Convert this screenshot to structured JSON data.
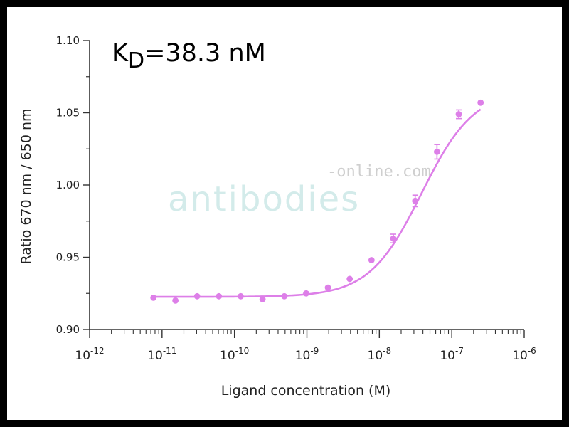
{
  "chart_data": {
    "type": "scatter",
    "annotation": {
      "prefix": "K",
      "subscript": "D",
      "suffix": "=38.3 nM"
    },
    "xlabel": "Ligand concentration (M)",
    "ylabel": "Ratio 670 nm / 650 nm",
    "x_scale": "log",
    "xlim": [
      1e-12,
      1e-06
    ],
    "ylim": [
      0.9,
      1.1
    ],
    "x_ticks": [
      {
        "base": "10",
        "exp": "-12"
      },
      {
        "base": "10",
        "exp": "-11"
      },
      {
        "base": "10",
        "exp": "-10"
      },
      {
        "base": "10",
        "exp": "-9"
      },
      {
        "base": "10",
        "exp": "-8"
      },
      {
        "base": "10",
        "exp": "-7"
      },
      {
        "base": "10",
        "exp": "-6"
      }
    ],
    "y_ticks": [
      "0.90",
      "0.95",
      "1.00",
      "1.05",
      "1.10"
    ],
    "color": "#dd7fe8",
    "series": [
      {
        "x": [
          7.6e-12,
          1.53e-11,
          3.05e-11,
          6.1e-11,
          1.22e-10,
          2.44e-10,
          4.88e-10,
          9.77e-10,
          1.95e-09,
          3.9e-09,
          7.8e-09,
          1.56e-08,
          3.125e-08,
          6.25e-08,
          1.25e-07,
          2.5e-07
        ],
        "y": [
          0.922,
          0.92,
          0.923,
          0.923,
          0.923,
          0.921,
          0.923,
          0.925,
          0.929,
          0.935,
          0.948,
          0.963,
          0.989,
          1.023,
          1.049,
          1.057
        ],
        "err": [
          0,
          0,
          0,
          0,
          0,
          0,
          0,
          0,
          0,
          0,
          0,
          0.003,
          0.004,
          0.005,
          0.003,
          0
        ]
      }
    ],
    "fit": {
      "bottom": 0.9226,
      "top": 1.066,
      "kd": 3.83e-08,
      "hill": 1.2
    }
  },
  "watermark": {
    "main": "antibodies",
    "sub": "-online.com"
  }
}
